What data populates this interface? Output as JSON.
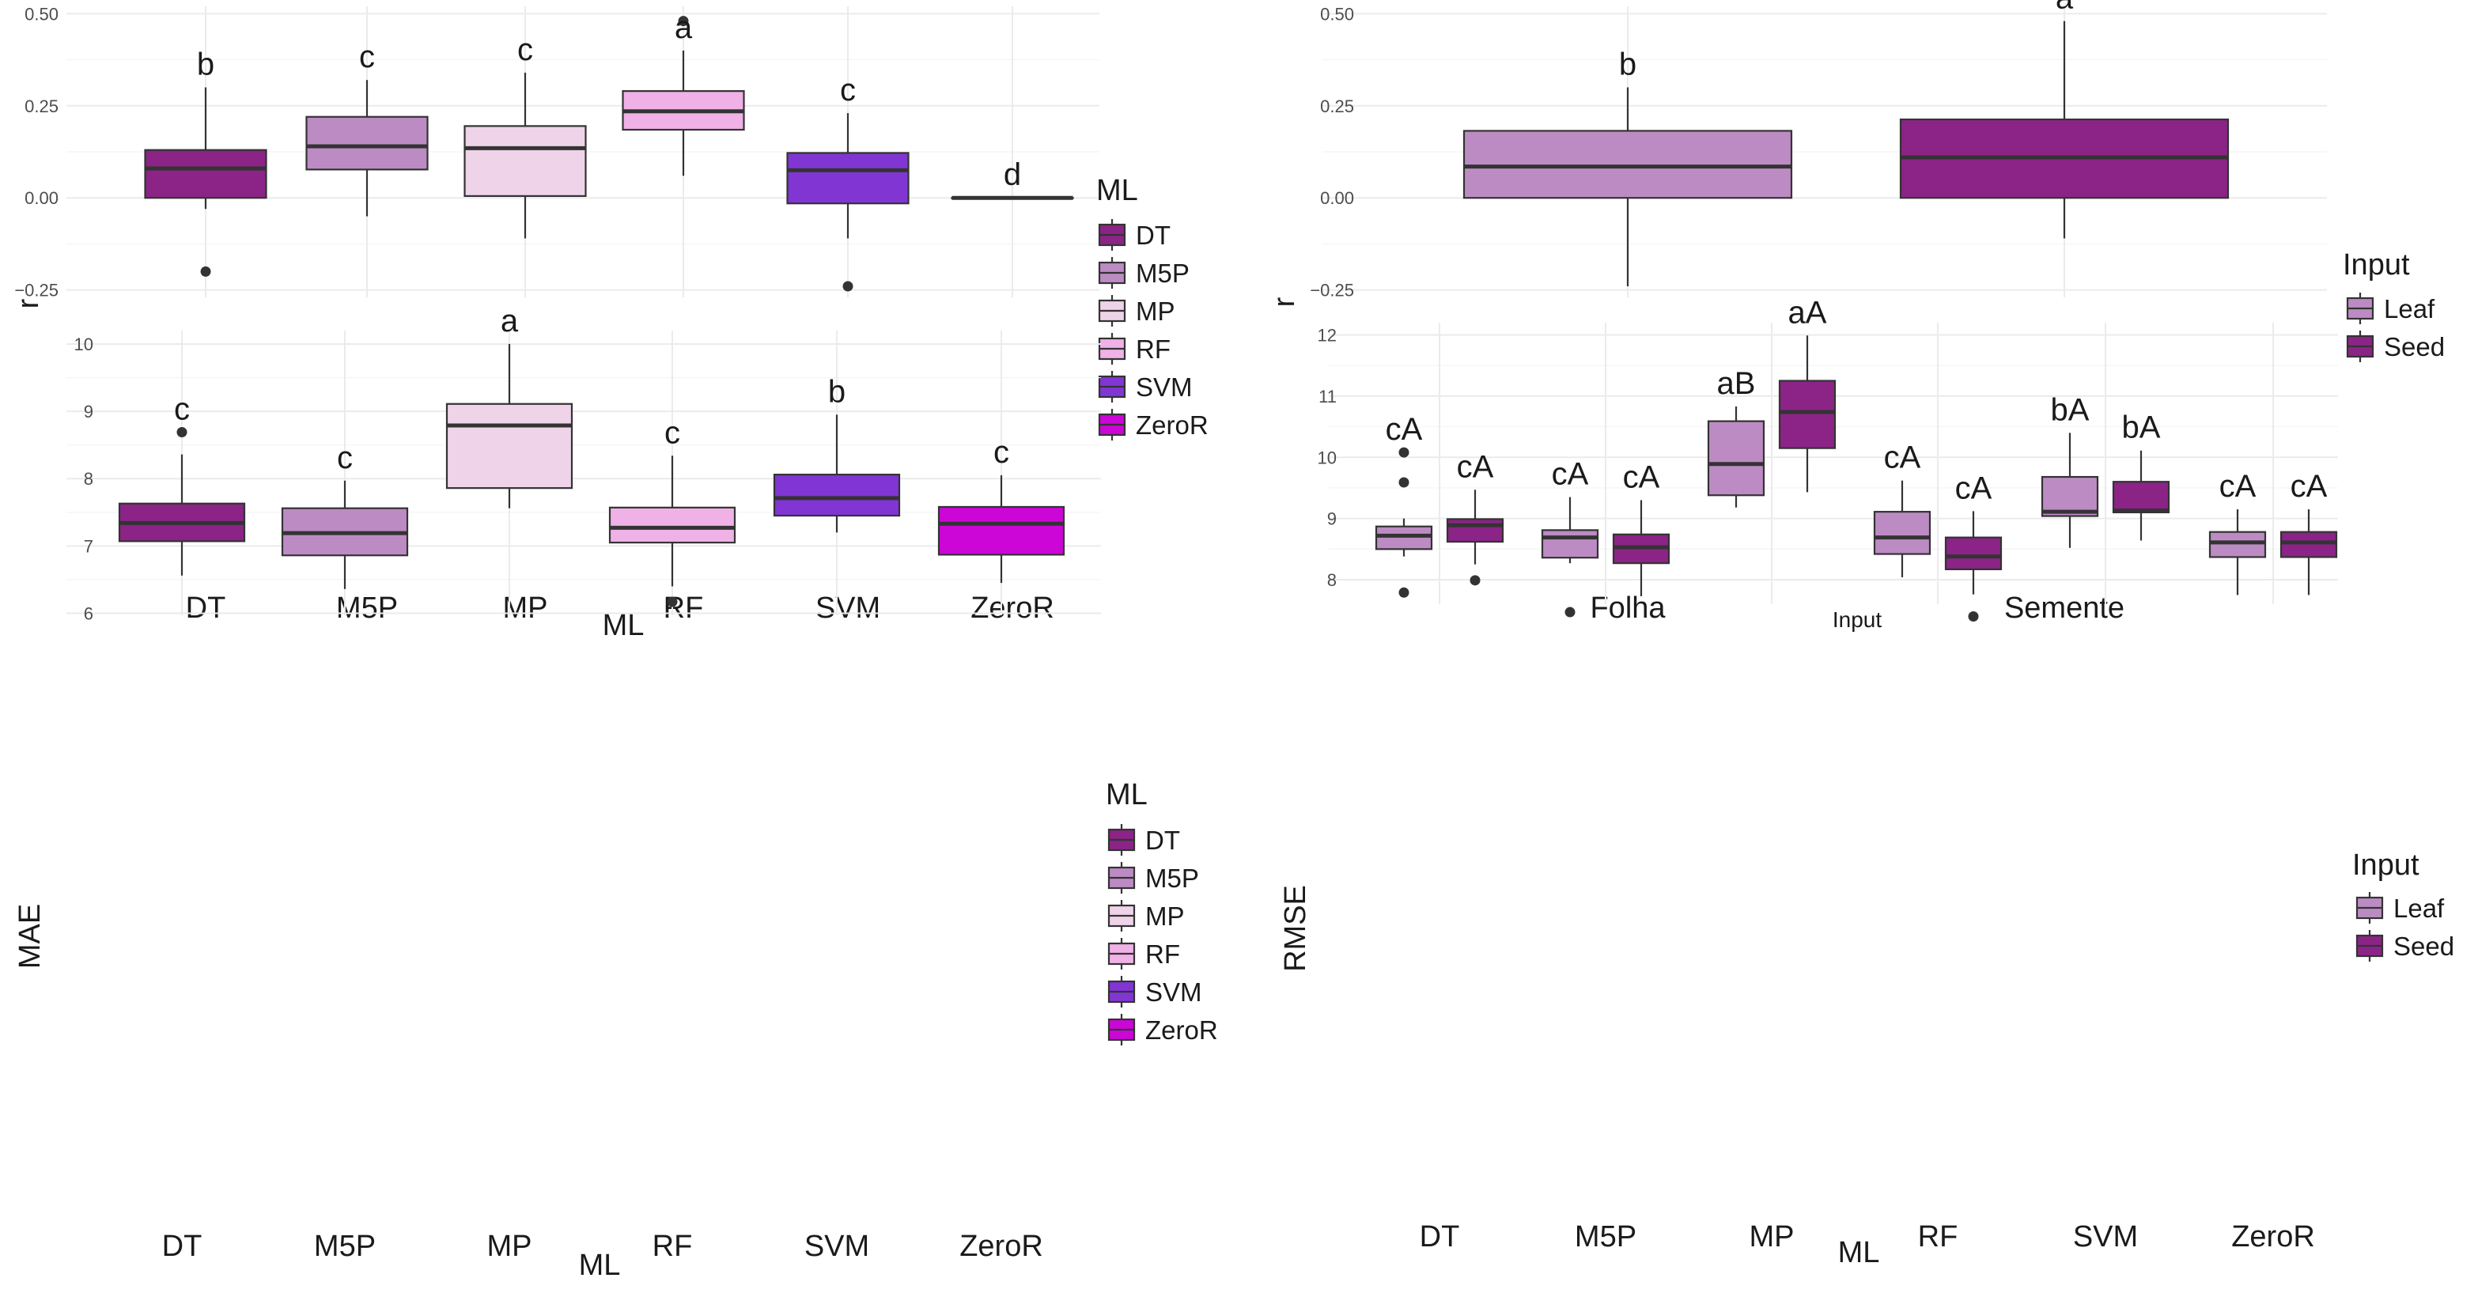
{
  "colors": {
    "DT": "#8b2486",
    "M5P": "#bd8bc4",
    "MP": "#efd3e8",
    "RF": "#efb1e6",
    "SVM": "#8136d4",
    "ZeroR": "#cc06d6",
    "Leaf": "#bd8bc4",
    "Seed": "#8b2486",
    "grid": "#ebebeb",
    "outline": "#333333"
  },
  "chart_data": [
    {
      "id": "r_by_ml",
      "type": "box",
      "xlabel": "ML",
      "ylabel": "r",
      "ylim": [
        -0.27,
        0.52
      ],
      "yticks": [
        0.5,
        0.25,
        0.0,
        -0.25
      ],
      "ytick_labels": [
        "0.50",
        "0.25",
        "0.00",
        "−0.25"
      ],
      "categories": [
        "DT",
        "M5P",
        "MP",
        "RF",
        "SVM",
        "ZeroR"
      ],
      "boxes": [
        {
          "cat": "DT",
          "fill": "DT",
          "q1": 0.0,
          "median": 0.08,
          "q3": 0.13,
          "whislo": -0.03,
          "whishi": 0.3,
          "outliers": [
            -0.2
          ],
          "sig": "b"
        },
        {
          "cat": "M5P",
          "fill": "M5P",
          "q1": 0.077,
          "median": 0.14,
          "q3": 0.22,
          "whislo": -0.05,
          "whishi": 0.32,
          "outliers": [],
          "sig": "c"
        },
        {
          "cat": "MP",
          "fill": "MP",
          "q1": 0.005,
          "median": 0.135,
          "q3": 0.195,
          "whislo": -0.11,
          "whishi": 0.34,
          "outliers": [],
          "sig": "c"
        },
        {
          "cat": "RF",
          "fill": "RF",
          "q1": 0.185,
          "median": 0.235,
          "q3": 0.29,
          "whislo": 0.06,
          "whishi": 0.4,
          "outliers": [
            0.48
          ],
          "sig": "a"
        },
        {
          "cat": "SVM",
          "fill": "SVM",
          "q1": -0.015,
          "median": 0.075,
          "q3": 0.122,
          "whislo": -0.11,
          "whishi": 0.23,
          "outliers": [
            -0.24
          ],
          "sig": "c"
        },
        {
          "cat": "ZeroR",
          "fill": "ZeroR",
          "q1": 0.0,
          "median": 0.0,
          "q3": 0.0,
          "whislo": 0.0,
          "whishi": 0.0,
          "outliers": [],
          "sig": "d"
        }
      ],
      "legend": {
        "title": "ML",
        "entries": [
          "DT",
          "M5P",
          "MP",
          "RF",
          "SVM",
          "ZeroR"
        ]
      }
    },
    {
      "id": "r_by_input",
      "type": "box",
      "xlabel": "Input",
      "ylabel": "r",
      "ylim": [
        -0.27,
        0.52
      ],
      "yticks": [
        0.5,
        0.25,
        0.0,
        -0.25
      ],
      "ytick_labels": [
        "0.50",
        "0.25",
        "0.00",
        "−0.25"
      ],
      "categories": [
        "Folha",
        "Semente"
      ],
      "boxes": [
        {
          "cat": "Folha",
          "fill": "Leaf",
          "q1": 0.0,
          "median": 0.085,
          "q3": 0.182,
          "whislo": -0.24,
          "whishi": 0.3,
          "outliers": [],
          "sig": "b"
        },
        {
          "cat": "Semente",
          "fill": "Seed",
          "q1": 0.0,
          "median": 0.11,
          "q3": 0.213,
          "whislo": -0.11,
          "whishi": 0.48,
          "outliers": [],
          "sig": "a"
        }
      ],
      "legend": {
        "title": "Input",
        "entries": [
          "Leaf",
          "Seed"
        ]
      }
    },
    {
      "id": "mae_by_ml",
      "type": "box",
      "xlabel": "ML",
      "ylabel": "MAE",
      "ylim": [
        5.97,
        10.2
      ],
      "yticks": [
        10,
        9,
        8,
        7,
        6
      ],
      "ytick_labels": [
        "10",
        "9",
        "8",
        "7",
        "6"
      ],
      "categories": [
        "DT",
        "M5P",
        "MP",
        "RF",
        "SVM",
        "ZeroR"
      ],
      "boxes": [
        {
          "cat": "DT",
          "fill": "DT",
          "q1": 7.07,
          "median": 7.34,
          "q3": 7.63,
          "whislo": 6.56,
          "whishi": 8.36,
          "outliers": [
            8.69
          ],
          "sig": "c"
        },
        {
          "cat": "M5P",
          "fill": "M5P",
          "q1": 6.86,
          "median": 7.19,
          "q3": 7.56,
          "whislo": 6.36,
          "whishi": 7.97,
          "outliers": [],
          "sig": "c"
        },
        {
          "cat": "MP",
          "fill": "MP",
          "q1": 7.86,
          "median": 8.79,
          "q3": 9.11,
          "whislo": 7.56,
          "whishi": 10.0,
          "outliers": [],
          "sig": "a"
        },
        {
          "cat": "RF",
          "fill": "RF",
          "q1": 7.05,
          "median": 7.27,
          "q3": 7.57,
          "whislo": 6.4,
          "whishi": 8.34,
          "outliers": [
            6.17
          ],
          "sig": "c"
        },
        {
          "cat": "SVM",
          "fill": "SVM",
          "q1": 7.45,
          "median": 7.71,
          "q3": 8.06,
          "whislo": 7.2,
          "whishi": 8.95,
          "outliers": [],
          "sig": "b"
        },
        {
          "cat": "ZeroR",
          "fill": "ZeroR",
          "q1": 6.87,
          "median": 7.33,
          "q3": 7.58,
          "whislo": 6.45,
          "whishi": 8.05,
          "outliers": [],
          "sig": "c"
        }
      ],
      "legend": {
        "title": "ML",
        "entries": [
          "DT",
          "M5P",
          "MP",
          "RF",
          "SVM",
          "ZeroR"
        ]
      }
    },
    {
      "id": "rmse_by_ml_input",
      "type": "box",
      "xlabel": "ML",
      "ylabel": "RMSE",
      "ylim": [
        7.6,
        12.2
      ],
      "yticks": [
        12,
        11,
        10,
        9,
        8
      ],
      "ytick_labels": [
        "12",
        "11",
        "10",
        "9",
        "8"
      ],
      "categories": [
        "DT",
        "M5P",
        "MP",
        "RF",
        "SVM",
        "ZeroR"
      ],
      "groups": [
        "Leaf",
        "Seed"
      ],
      "boxes": [
        {
          "cat": "DT",
          "group": "Leaf",
          "fill": "Leaf",
          "q1": 8.5,
          "median": 8.72,
          "q3": 8.87,
          "whislo": 8.38,
          "whishi": 9.0,
          "outliers": [
            10.08,
            9.59,
            7.79
          ],
          "sig": "cA"
        },
        {
          "cat": "DT",
          "group": "Seed",
          "fill": "Seed",
          "q1": 8.62,
          "median": 8.89,
          "q3": 8.99,
          "whislo": 8.25,
          "whishi": 9.47,
          "outliers": [
            7.99
          ],
          "sig": "cA"
        },
        {
          "cat": "M5P",
          "group": "Leaf",
          "fill": "Leaf",
          "q1": 8.36,
          "median": 8.69,
          "q3": 8.81,
          "whislo": 8.27,
          "whishi": 9.35,
          "outliers": [
            7.47
          ],
          "sig": "cA"
        },
        {
          "cat": "M5P",
          "group": "Seed",
          "fill": "Seed",
          "q1": 8.27,
          "median": 8.53,
          "q3": 8.74,
          "whislo": 7.73,
          "whishi": 9.3,
          "outliers": [],
          "sig": "cA"
        },
        {
          "cat": "MP",
          "group": "Leaf",
          "fill": "Leaf",
          "q1": 9.38,
          "median": 9.89,
          "q3": 10.59,
          "whislo": 9.18,
          "whishi": 10.83,
          "outliers": [],
          "sig": "aB"
        },
        {
          "cat": "MP",
          "group": "Seed",
          "fill": "Seed",
          "q1": 10.15,
          "median": 10.74,
          "q3": 11.25,
          "whislo": 9.43,
          "whishi": 11.99,
          "outliers": [],
          "sig": "aA"
        },
        {
          "cat": "RF",
          "group": "Leaf",
          "fill": "Leaf",
          "q1": 8.42,
          "median": 8.69,
          "q3": 9.11,
          "whislo": 8.04,
          "whishi": 9.62,
          "outliers": [],
          "sig": "cA"
        },
        {
          "cat": "RF",
          "group": "Seed",
          "fill": "Seed",
          "q1": 8.17,
          "median": 8.38,
          "q3": 8.69,
          "whislo": 7.76,
          "whishi": 9.12,
          "outliers": [
            7.4
          ],
          "sig": "cA"
        },
        {
          "cat": "SVM",
          "group": "Leaf",
          "fill": "Leaf",
          "q1": 9.04,
          "median": 9.11,
          "q3": 9.68,
          "whislo": 8.52,
          "whishi": 10.4,
          "outliers": [],
          "sig": "bA"
        },
        {
          "cat": "SVM",
          "group": "Seed",
          "fill": "Seed",
          "q1": 9.1,
          "median": 9.13,
          "q3": 9.6,
          "whislo": 8.64,
          "whishi": 10.11,
          "outliers": [],
          "sig": "bA"
        },
        {
          "cat": "ZeroR",
          "group": "Leaf",
          "fill": "Leaf",
          "q1": 8.37,
          "median": 8.61,
          "q3": 8.78,
          "whislo": 7.75,
          "whishi": 9.15,
          "outliers": [],
          "sig": "cA"
        },
        {
          "cat": "ZeroR",
          "group": "Seed",
          "fill": "Seed",
          "q1": 8.37,
          "median": 8.61,
          "q3": 8.78,
          "whislo": 7.75,
          "whishi": 9.15,
          "outliers": [],
          "sig": "cA"
        }
      ],
      "legend": {
        "title": "Input",
        "entries": [
          "Leaf",
          "Seed"
        ]
      }
    }
  ]
}
